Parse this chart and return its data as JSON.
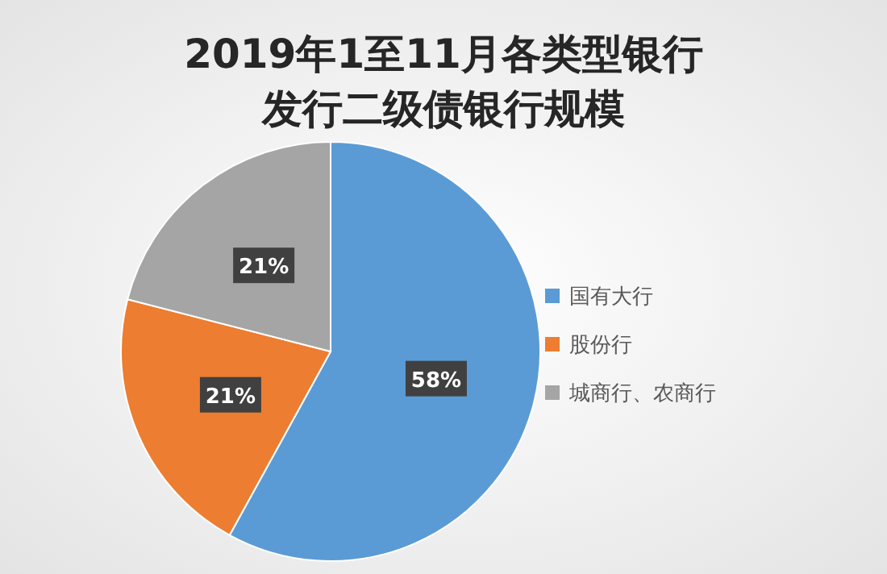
{
  "chart_data": {
    "type": "pie",
    "title": "2019年1至11月各类型银行发行二级债银行规模",
    "categories": [
      "国有大行",
      "股份行",
      "城商行、农商行"
    ],
    "values": [
      58,
      21,
      21
    ],
    "colors": [
      "#5b9bd5",
      "#ed7d31",
      "#a5a5a5"
    ],
    "value_labels": [
      "58%",
      "21%",
      "21%"
    ],
    "legend": "right"
  }
}
